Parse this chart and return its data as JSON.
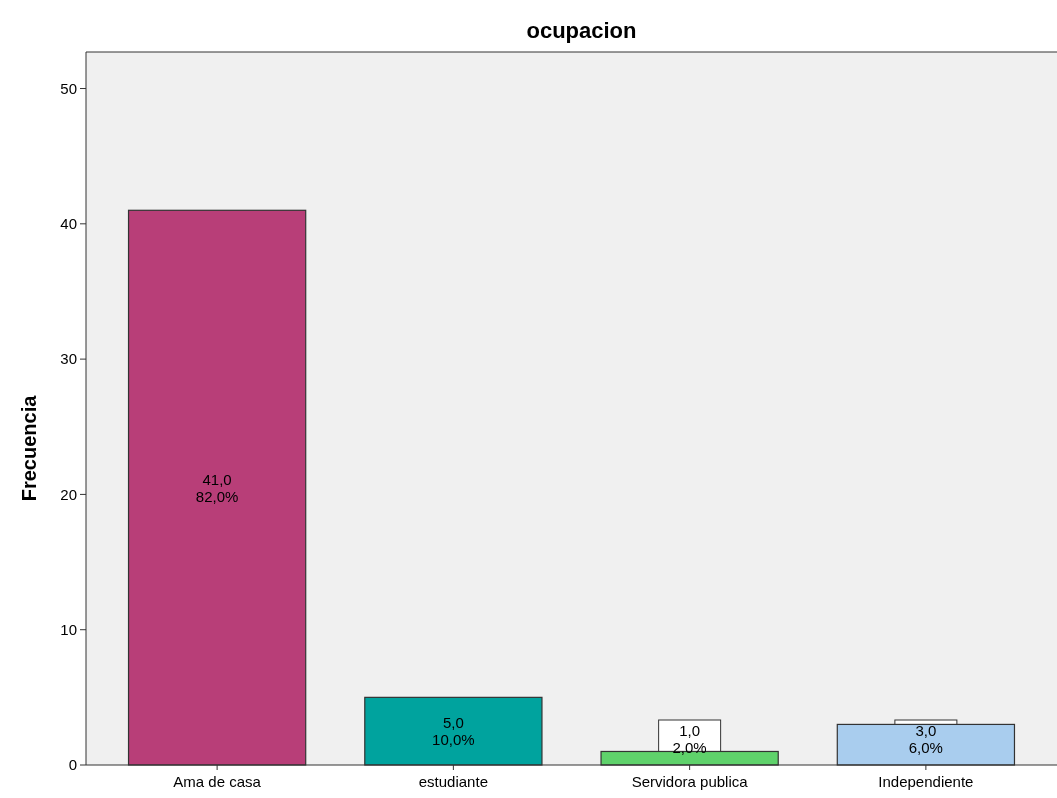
{
  "chart_data": {
    "type": "bar",
    "title": "ocupacion",
    "ylabel": "Frecuencia",
    "categories": [
      "Ama de casa",
      "estudiante",
      "Servidora publica",
      "Independiente"
    ],
    "values": [
      41,
      5,
      1,
      3
    ],
    "colors": [
      "#b83e78",
      "#00a39e",
      "#5fd26b",
      "#a9cdee"
    ],
    "value_labels": [
      "41,0\n82,0%",
      "5,0\n10,0%",
      "1,0\n2,0%",
      "3,0\n6,0%"
    ],
    "ylim": [
      0,
      52.7
    ],
    "yticks": [
      0,
      10,
      20,
      30,
      40,
      50
    ],
    "grid": false
  }
}
